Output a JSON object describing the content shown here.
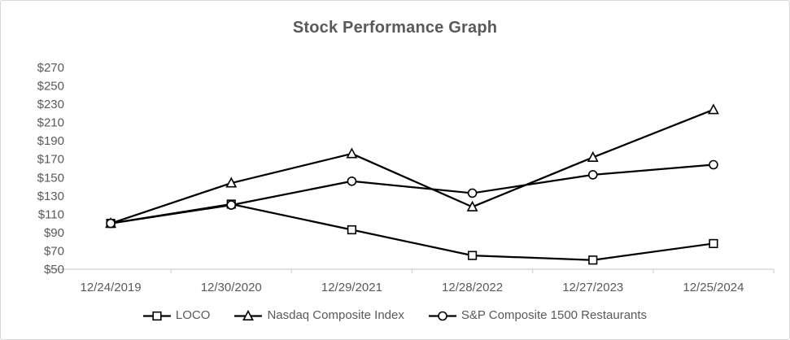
{
  "chart_data": {
    "type": "line",
    "title": "Stock Performance Graph",
    "categories": [
      "12/24/2019",
      "12/30/2020",
      "12/29/2021",
      "12/28/2022",
      "12/27/2023",
      "12/25/2024"
    ],
    "y_axis": {
      "tick_labels": [
        "$50",
        "$70",
        "$90",
        "$110",
        "$130",
        "$150",
        "$170",
        "$190",
        "$210",
        "$230",
        "$250",
        "$270"
      ],
      "range": [
        50,
        270
      ]
    },
    "series": [
      {
        "name": "LOCO",
        "marker": "square",
        "values": [
          100,
          121,
          93,
          65,
          60,
          78
        ]
      },
      {
        "name": "Nasdaq Composite Index",
        "marker": "triangle",
        "values": [
          100,
          144,
          176,
          118,
          172,
          224
        ]
      },
      {
        "name": "S&P Composite 1500 Restaurants",
        "marker": "circle",
        "values": [
          100,
          120,
          146,
          133,
          153,
          164
        ]
      }
    ],
    "legend_position": "bottom",
    "grid": false,
    "colors": {
      "line": "#000000",
      "axis": "#d9d9d9",
      "text": "#595959"
    }
  }
}
